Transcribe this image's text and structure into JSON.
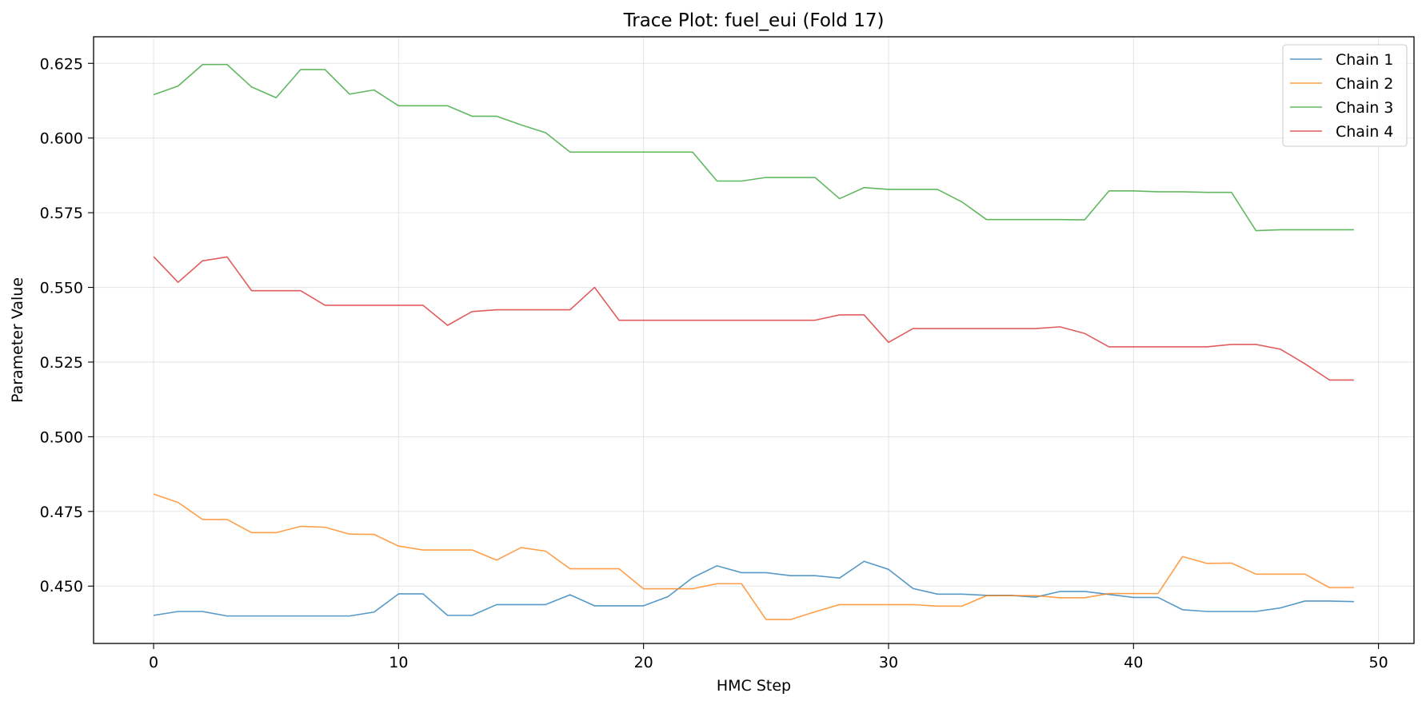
{
  "chart_data": {
    "type": "line",
    "title": "Trace Plot: fuel_eui (Fold 17)",
    "xlabel": "HMC Step",
    "ylabel": "Parameter Value",
    "xlim": [
      -2.45,
      51.45
    ],
    "ylim": [
      0.4308,
      0.6339
    ],
    "xticks": [
      0,
      10,
      20,
      30,
      40,
      50
    ],
    "yticks": [
      0.45,
      0.475,
      0.5,
      0.525,
      0.55,
      0.575,
      0.6,
      0.625
    ],
    "ytick_labels": [
      "0.450",
      "0.475",
      "0.500",
      "0.525",
      "0.550",
      "0.575",
      "0.600",
      "0.625"
    ],
    "grid": true,
    "legend_position": "top-right",
    "x": [
      0,
      1,
      2,
      3,
      4,
      5,
      6,
      7,
      8,
      9,
      10,
      11,
      12,
      13,
      14,
      15,
      16,
      17,
      18,
      19,
      20,
      21,
      22,
      23,
      24,
      25,
      26,
      27,
      28,
      29,
      30,
      31,
      32,
      33,
      34,
      35,
      36,
      37,
      38,
      39,
      40,
      41,
      42,
      43,
      44,
      45,
      46,
      47,
      48,
      49
    ],
    "series": [
      {
        "name": "Chain 1",
        "color": "#1f77b4",
        "values": [
          0.4402,
          0.4415,
          0.4415,
          0.44,
          0.44,
          0.44,
          0.44,
          0.44,
          0.44,
          0.4413,
          0.4474,
          0.4474,
          0.4402,
          0.4402,
          0.4438,
          0.4438,
          0.4438,
          0.4471,
          0.4434,
          0.4434,
          0.4434,
          0.4465,
          0.4528,
          0.4568,
          0.4545,
          0.4545,
          0.4535,
          0.4535,
          0.4527,
          0.4583,
          0.4556,
          0.4492,
          0.4473,
          0.4473,
          0.4469,
          0.4469,
          0.4463,
          0.4482,
          0.4482,
          0.4472,
          0.4462,
          0.4462,
          0.4421,
          0.4415,
          0.4415,
          0.4415,
          0.4427,
          0.445,
          0.445,
          0.4448
        ]
      },
      {
        "name": "Chain 2",
        "color": "#ff7f0e",
        "values": [
          0.4808,
          0.478,
          0.4723,
          0.4723,
          0.4679,
          0.4679,
          0.47,
          0.4697,
          0.4674,
          0.4673,
          0.4634,
          0.4621,
          0.4621,
          0.4621,
          0.4587,
          0.4629,
          0.4617,
          0.4558,
          0.4558,
          0.4558,
          0.4491,
          0.4491,
          0.4491,
          0.4508,
          0.4508,
          0.4388,
          0.4388,
          0.4414,
          0.4438,
          0.4438,
          0.4438,
          0.4438,
          0.4433,
          0.4433,
          0.4468,
          0.4468,
          0.4468,
          0.4461,
          0.4461,
          0.4475,
          0.4475,
          0.4475,
          0.4599,
          0.4576,
          0.4577,
          0.454,
          0.454,
          0.454,
          0.4495,
          0.4495
        ]
      },
      {
        "name": "Chain 3",
        "color": "#2ca02c",
        "values": [
          0.6145,
          0.6174,
          0.6246,
          0.6246,
          0.6171,
          0.6135,
          0.6229,
          0.6229,
          0.6147,
          0.6161,
          0.6108,
          0.6108,
          0.6108,
          0.6073,
          0.6073,
          0.6044,
          0.6018,
          0.5953,
          0.5953,
          0.5953,
          0.5953,
          0.5953,
          0.5953,
          0.5856,
          0.5856,
          0.5868,
          0.5868,
          0.5868,
          0.5797,
          0.5834,
          0.5828,
          0.5828,
          0.5828,
          0.5786,
          0.5727,
          0.5727,
          0.5727,
          0.5727,
          0.5726,
          0.5823,
          0.5823,
          0.582,
          0.582,
          0.5818,
          0.5818,
          0.569,
          0.5693,
          0.5693,
          0.5693,
          0.5693
        ]
      },
      {
        "name": "Chain 4",
        "color": "#d62728",
        "values": [
          0.5603,
          0.5517,
          0.5589,
          0.5602,
          0.5489,
          0.5489,
          0.5489,
          0.544,
          0.544,
          0.544,
          0.544,
          0.544,
          0.5373,
          0.5419,
          0.5425,
          0.5425,
          0.5425,
          0.5425,
          0.55,
          0.539,
          0.539,
          0.539,
          0.539,
          0.539,
          0.539,
          0.539,
          0.539,
          0.539,
          0.5408,
          0.5408,
          0.5316,
          0.5362,
          0.5362,
          0.5362,
          0.5362,
          0.5362,
          0.5362,
          0.5368,
          0.5346,
          0.5301,
          0.5301,
          0.5301,
          0.5301,
          0.5301,
          0.5309,
          0.5309,
          0.5293,
          0.5244,
          0.519,
          0.519
        ]
      }
    ]
  }
}
